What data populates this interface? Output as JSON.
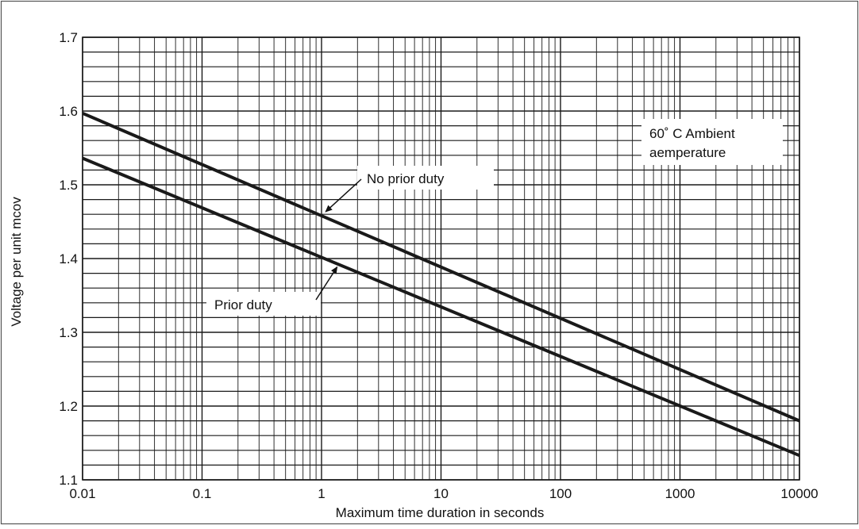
{
  "chart_data": {
    "type": "line",
    "xscale": "log",
    "xlim": [
      0.01,
      10000
    ],
    "ylim": [
      1.1,
      1.7
    ],
    "xlabel": "Maximum time duration in seconds",
    "ylabel": "Voltage per unit mcov",
    "x_ticks": [
      0.01,
      0.1,
      1,
      10,
      100,
      1000,
      10000
    ],
    "x_tick_labels": [
      "0.01",
      "0.1",
      "1",
      "10",
      "100",
      "1000",
      "10000"
    ],
    "y_ticks": [
      1.1,
      1.2,
      1.3,
      1.4,
      1.5,
      1.6,
      1.7
    ],
    "y_tick_labels": [
      "1.1",
      "1.2",
      "1.3",
      "1.4",
      "1.5",
      "1.6",
      "1.7"
    ],
    "y_minor_step": 0.02,
    "grid": true,
    "series": [
      {
        "name": "No prior duty",
        "x": [
          0.01,
          10000
        ],
        "y": [
          1.597,
          1.18
        ]
      },
      {
        "name": "Prior duty",
        "x": [
          0.01,
          10000
        ],
        "y": [
          1.536,
          1.133
        ]
      }
    ],
    "annotations": [
      {
        "text": "No prior duty",
        "points_to": {
          "x": 1.05,
          "y": 1.457
        }
      },
      {
        "text": "Prior duty",
        "points_to": {
          "x": 1.35,
          "y": 1.395
        }
      },
      {
        "text": "60˚ C Ambient",
        "line2": "aemperature"
      }
    ],
    "colors": {
      "line": "#1a1a1a",
      "grid": "#1a1a1a",
      "frame": "#555555"
    }
  }
}
